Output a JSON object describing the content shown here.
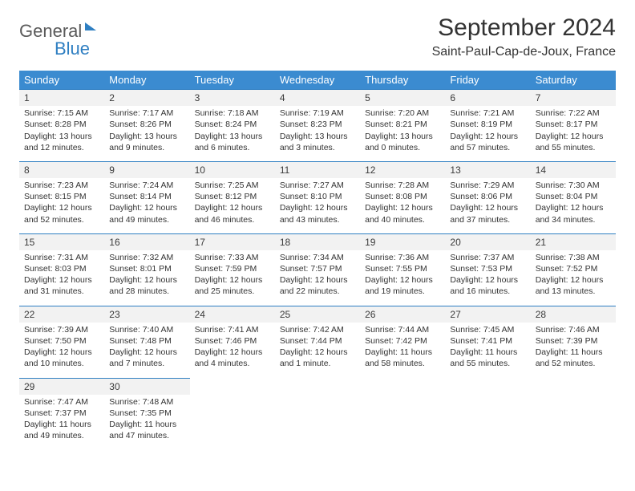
{
  "brand": {
    "part1": "General",
    "part2": "Blue"
  },
  "title": "September 2024",
  "location": "Saint-Paul-Cap-de-Joux, France",
  "colors": {
    "header_bg": "#3b8bd0",
    "header_text": "#ffffff",
    "row_divider": "#2f7fc2",
    "daynum_bg": "#f2f2f2",
    "text": "#333333",
    "brand_gray": "#5a5a5a",
    "brand_blue": "#2f7fc2",
    "page_bg": "#ffffff"
  },
  "typography": {
    "month_title_pt": 30,
    "location_pt": 16,
    "header_pt": 13,
    "cell_pt": 10.5,
    "daynum_pt": 12
  },
  "day_headers": [
    "Sunday",
    "Monday",
    "Tuesday",
    "Wednesday",
    "Thursday",
    "Friday",
    "Saturday"
  ],
  "weeks": [
    [
      {
        "day": "1",
        "sunrise": "Sunrise: 7:15 AM",
        "sunset": "Sunset: 8:28 PM",
        "daylight": "Daylight: 13 hours and 12 minutes."
      },
      {
        "day": "2",
        "sunrise": "Sunrise: 7:17 AM",
        "sunset": "Sunset: 8:26 PM",
        "daylight": "Daylight: 13 hours and 9 minutes."
      },
      {
        "day": "3",
        "sunrise": "Sunrise: 7:18 AM",
        "sunset": "Sunset: 8:24 PM",
        "daylight": "Daylight: 13 hours and 6 minutes."
      },
      {
        "day": "4",
        "sunrise": "Sunrise: 7:19 AM",
        "sunset": "Sunset: 8:23 PM",
        "daylight": "Daylight: 13 hours and 3 minutes."
      },
      {
        "day": "5",
        "sunrise": "Sunrise: 7:20 AM",
        "sunset": "Sunset: 8:21 PM",
        "daylight": "Daylight: 13 hours and 0 minutes."
      },
      {
        "day": "6",
        "sunrise": "Sunrise: 7:21 AM",
        "sunset": "Sunset: 8:19 PM",
        "daylight": "Daylight: 12 hours and 57 minutes."
      },
      {
        "day": "7",
        "sunrise": "Sunrise: 7:22 AM",
        "sunset": "Sunset: 8:17 PM",
        "daylight": "Daylight: 12 hours and 55 minutes."
      }
    ],
    [
      {
        "day": "8",
        "sunrise": "Sunrise: 7:23 AM",
        "sunset": "Sunset: 8:15 PM",
        "daylight": "Daylight: 12 hours and 52 minutes."
      },
      {
        "day": "9",
        "sunrise": "Sunrise: 7:24 AM",
        "sunset": "Sunset: 8:14 PM",
        "daylight": "Daylight: 12 hours and 49 minutes."
      },
      {
        "day": "10",
        "sunrise": "Sunrise: 7:25 AM",
        "sunset": "Sunset: 8:12 PM",
        "daylight": "Daylight: 12 hours and 46 minutes."
      },
      {
        "day": "11",
        "sunrise": "Sunrise: 7:27 AM",
        "sunset": "Sunset: 8:10 PM",
        "daylight": "Daylight: 12 hours and 43 minutes."
      },
      {
        "day": "12",
        "sunrise": "Sunrise: 7:28 AM",
        "sunset": "Sunset: 8:08 PM",
        "daylight": "Daylight: 12 hours and 40 minutes."
      },
      {
        "day": "13",
        "sunrise": "Sunrise: 7:29 AM",
        "sunset": "Sunset: 8:06 PM",
        "daylight": "Daylight: 12 hours and 37 minutes."
      },
      {
        "day": "14",
        "sunrise": "Sunrise: 7:30 AM",
        "sunset": "Sunset: 8:04 PM",
        "daylight": "Daylight: 12 hours and 34 minutes."
      }
    ],
    [
      {
        "day": "15",
        "sunrise": "Sunrise: 7:31 AM",
        "sunset": "Sunset: 8:03 PM",
        "daylight": "Daylight: 12 hours and 31 minutes."
      },
      {
        "day": "16",
        "sunrise": "Sunrise: 7:32 AM",
        "sunset": "Sunset: 8:01 PM",
        "daylight": "Daylight: 12 hours and 28 minutes."
      },
      {
        "day": "17",
        "sunrise": "Sunrise: 7:33 AM",
        "sunset": "Sunset: 7:59 PM",
        "daylight": "Daylight: 12 hours and 25 minutes."
      },
      {
        "day": "18",
        "sunrise": "Sunrise: 7:34 AM",
        "sunset": "Sunset: 7:57 PM",
        "daylight": "Daylight: 12 hours and 22 minutes."
      },
      {
        "day": "19",
        "sunrise": "Sunrise: 7:36 AM",
        "sunset": "Sunset: 7:55 PM",
        "daylight": "Daylight: 12 hours and 19 minutes."
      },
      {
        "day": "20",
        "sunrise": "Sunrise: 7:37 AM",
        "sunset": "Sunset: 7:53 PM",
        "daylight": "Daylight: 12 hours and 16 minutes."
      },
      {
        "day": "21",
        "sunrise": "Sunrise: 7:38 AM",
        "sunset": "Sunset: 7:52 PM",
        "daylight": "Daylight: 12 hours and 13 minutes."
      }
    ],
    [
      {
        "day": "22",
        "sunrise": "Sunrise: 7:39 AM",
        "sunset": "Sunset: 7:50 PM",
        "daylight": "Daylight: 12 hours and 10 minutes."
      },
      {
        "day": "23",
        "sunrise": "Sunrise: 7:40 AM",
        "sunset": "Sunset: 7:48 PM",
        "daylight": "Daylight: 12 hours and 7 minutes."
      },
      {
        "day": "24",
        "sunrise": "Sunrise: 7:41 AM",
        "sunset": "Sunset: 7:46 PM",
        "daylight": "Daylight: 12 hours and 4 minutes."
      },
      {
        "day": "25",
        "sunrise": "Sunrise: 7:42 AM",
        "sunset": "Sunset: 7:44 PM",
        "daylight": "Daylight: 12 hours and 1 minute."
      },
      {
        "day": "26",
        "sunrise": "Sunrise: 7:44 AM",
        "sunset": "Sunset: 7:42 PM",
        "daylight": "Daylight: 11 hours and 58 minutes."
      },
      {
        "day": "27",
        "sunrise": "Sunrise: 7:45 AM",
        "sunset": "Sunset: 7:41 PM",
        "daylight": "Daylight: 11 hours and 55 minutes."
      },
      {
        "day": "28",
        "sunrise": "Sunrise: 7:46 AM",
        "sunset": "Sunset: 7:39 PM",
        "daylight": "Daylight: 11 hours and 52 minutes."
      }
    ],
    [
      {
        "day": "29",
        "sunrise": "Sunrise: 7:47 AM",
        "sunset": "Sunset: 7:37 PM",
        "daylight": "Daylight: 11 hours and 49 minutes."
      },
      {
        "day": "30",
        "sunrise": "Sunrise: 7:48 AM",
        "sunset": "Sunset: 7:35 PM",
        "daylight": "Daylight: 11 hours and 47 minutes."
      },
      null,
      null,
      null,
      null,
      null
    ]
  ]
}
